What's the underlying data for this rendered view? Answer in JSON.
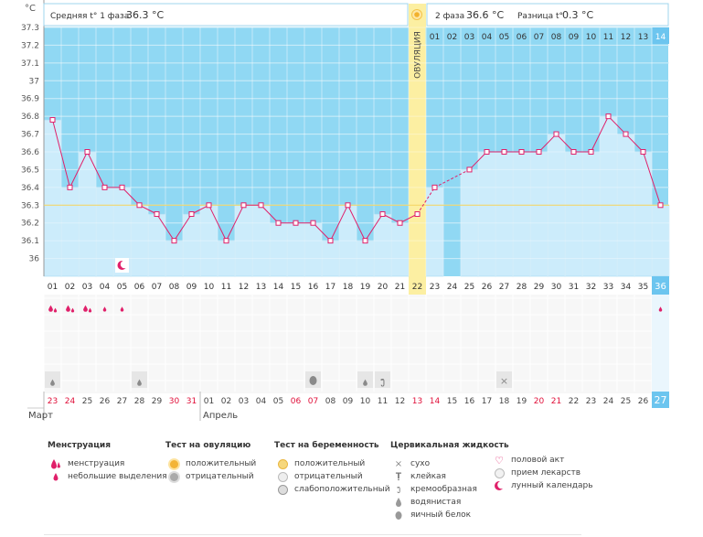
{
  "header": {
    "phase1_label": "Средняя t° 1 фаза",
    "phase1_value": "36.3 °C",
    "phase2_label": "2 фаза",
    "phase2_value": "36.6 °C",
    "diff_label": "Разница t°",
    "diff_value": "0.3 °C",
    "ovulation_label": "ОВУЛЯЦИЯ",
    "axis_unit": "°C"
  },
  "chart_data": {
    "type": "line",
    "ylabel": "°C",
    "ylim": [
      35.9,
      37.3
    ],
    "yticks": [
      "36",
      "36.1",
      "36.2",
      "36.3",
      "36.4",
      "36.5",
      "36.6",
      "36.7",
      "36.8",
      "36.9",
      "37",
      "37.1",
      "37.2",
      "37.3"
    ],
    "cycle_days": [
      "01",
      "02",
      "03",
      "04",
      "05",
      "06",
      "07",
      "08",
      "09",
      "10",
      "11",
      "12",
      "13",
      "14",
      "15",
      "16",
      "17",
      "18",
      "19",
      "20",
      "21",
      "22",
      "23",
      "24",
      "25",
      "26",
      "27",
      "28",
      "29",
      "30",
      "31",
      "32",
      "33",
      "34",
      "35",
      "36"
    ],
    "temperatures": [
      36.78,
      36.4,
      36.6,
      36.4,
      36.4,
      36.3,
      36.25,
      36.1,
      36.25,
      36.3,
      36.1,
      36.3,
      36.3,
      36.2,
      36.2,
      36.2,
      36.1,
      36.3,
      36.1,
      36.25,
      36.2,
      36.25,
      36.4,
      null,
      36.5,
      36.6,
      36.6,
      36.6,
      36.6,
      36.7,
      36.6,
      36.6,
      36.8,
      36.7,
      36.6,
      36.3
    ],
    "coverline": 36.3,
    "ovulation_day": "22",
    "phase2_days": [
      "01",
      "02",
      "03",
      "04",
      "05",
      "06",
      "07",
      "08",
      "09",
      "10",
      "11",
      "12",
      "13",
      "14"
    ],
    "current_day": "36",
    "dates": [
      "23",
      "24",
      "25",
      "26",
      "27",
      "28",
      "29",
      "30",
      "31",
      "01",
      "02",
      "03",
      "04",
      "05",
      "06",
      "07",
      "08",
      "09",
      "10",
      "11",
      "12",
      "13",
      "14",
      "15",
      "16",
      "17",
      "18",
      "19",
      "20",
      "21",
      "22",
      "23",
      "24",
      "25",
      "26",
      "27"
    ],
    "red_dates": [
      0,
      1,
      7,
      8,
      14,
      15,
      21,
      22,
      28,
      29
    ],
    "months": [
      {
        "label": "Март",
        "start_index": 0
      },
      {
        "label": "Апрель",
        "start_index": 9
      }
    ],
    "moon_day_index": 4,
    "menstruation": [
      "heavy",
      "heavy",
      "heavy",
      "light",
      "light",
      null,
      null,
      null,
      null,
      null,
      null,
      null,
      null,
      null,
      null,
      null,
      null,
      null,
      null,
      null,
      null,
      null,
      null,
      null,
      null,
      null,
      null,
      null,
      null,
      null,
      null,
      null,
      null,
      null,
      null,
      "light"
    ],
    "cervical": {
      "0": "watery",
      "5": "watery",
      "15": "eggwhite",
      "18": "watery",
      "19": "creamy",
      "26": "dry"
    }
  },
  "legend": {
    "menstruation": {
      "title": "Менструация",
      "items": [
        "менструация",
        "небольшие выделения"
      ]
    },
    "ovulation_test": {
      "title": "Тест на овуляцию",
      "items": [
        "положительный",
        "отрицательный"
      ]
    },
    "pregnancy_test": {
      "title": "Тест на беременность",
      "items": [
        "положительный",
        "отрицательный",
        "слабоположительный"
      ]
    },
    "cervical_fluid": {
      "title": "Цервикальная жидкость",
      "items": [
        "сухо",
        "клейкая",
        "кремообразная",
        "водянистая",
        "яичный белок"
      ]
    },
    "other": {
      "items": [
        "половой акт",
        "прием лекарств",
        "лунный календарь"
      ]
    }
  },
  "colors": {
    "sky": "#90d8f3",
    "bar": "#ccecfb",
    "bar_edge": "#a5d9f2",
    "line": "#e0206a",
    "ovulation": "#fcefa2",
    "coverline": "#f3d35b",
    "today": "#6cc5ef",
    "red_text": "#e0103a"
  }
}
